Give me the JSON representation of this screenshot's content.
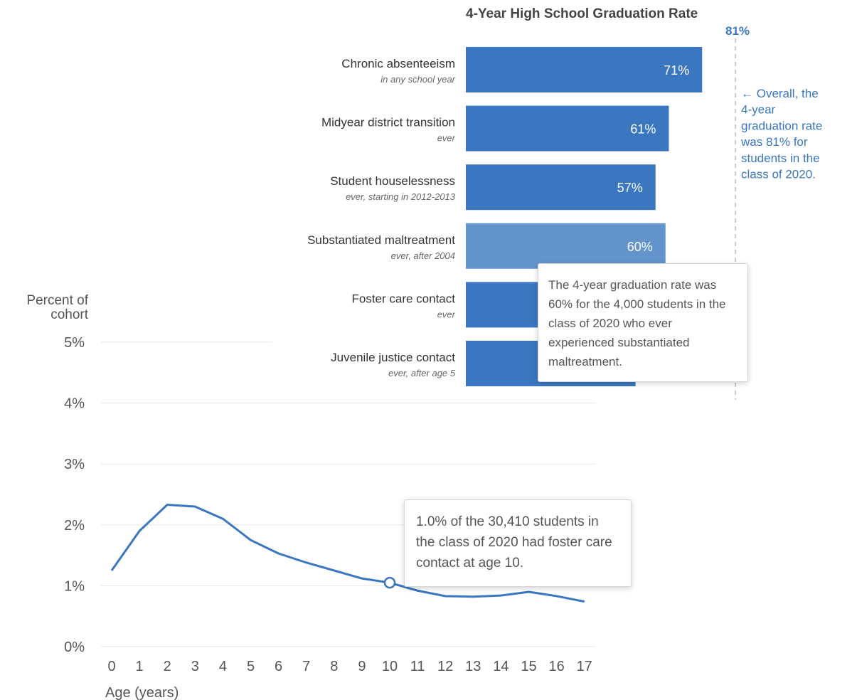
{
  "bar_chart": {
    "title": "4-Year High School Graduation Rate",
    "reference_label": "81%",
    "reference_note": "← Overall, the 4-year graduation rate was 81% for students in the class of 2020.",
    "tooltip": "The 4-year graduation rate was 60% for the 4,000 students in the class of 2020 who ever experienced substantiated maltreatment.",
    "color": "#3a77c0",
    "highlight_color": "#6394cc"
  },
  "line_chart": {
    "ylabel_line1": "Percent of",
    "ylabel_line2": "cohort",
    "xlabel": "Age (years)",
    "tooltip": "1.0% of the 30,410 students in the class of 2020 had foster care contact at age 10.",
    "color": "#3a77c0"
  },
  "chart_data": [
    {
      "type": "bar",
      "title": "4-Year High School Graduation Rate",
      "categories": [
        "Chronic absenteeism",
        "Midyear district transition",
        "Student houselessness",
        "Substantiated maltreatment",
        "Foster care contact",
        "Juvenile justice contact"
      ],
      "subtitles": [
        "in any school year",
        "ever",
        "ever, starting in 2012-2013",
        "ever, after 2004",
        "ever",
        "ever, after age 5"
      ],
      "values": [
        71,
        61,
        57,
        60,
        58,
        51
      ],
      "value_labels": [
        "71%",
        "61%",
        "57%",
        "60%",
        "",
        ""
      ],
      "highlighted_index": 3,
      "reference_value": 81,
      "xlim": [
        0,
        81
      ]
    },
    {
      "type": "line",
      "ylabel": "Percent of cohort",
      "xlabel": "Age (years)",
      "x": [
        0,
        1,
        2,
        3,
        4,
        5,
        6,
        7,
        8,
        9,
        10,
        11,
        12,
        13,
        14,
        15,
        16,
        17
      ],
      "values": [
        1.25,
        1.9,
        2.33,
        2.3,
        2.1,
        1.75,
        1.53,
        1.38,
        1.25,
        1.12,
        1.05,
        0.92,
        0.83,
        0.82,
        0.84,
        0.9,
        0.83,
        0.74
      ],
      "highlighted_index": 10,
      "ylim": [
        0,
        5
      ],
      "yticks": [
        0,
        1,
        2,
        3,
        4,
        5
      ],
      "ytick_labels": [
        "0%",
        "1%",
        "2%",
        "3%",
        "4%",
        "5%"
      ],
      "xtick_labels": [
        "0",
        "1",
        "2",
        "3",
        "4",
        "5",
        "6",
        "7",
        "8",
        "9",
        "10",
        "11",
        "12",
        "13",
        "14",
        "15",
        "16",
        "17"
      ],
      "grid": true
    }
  ]
}
